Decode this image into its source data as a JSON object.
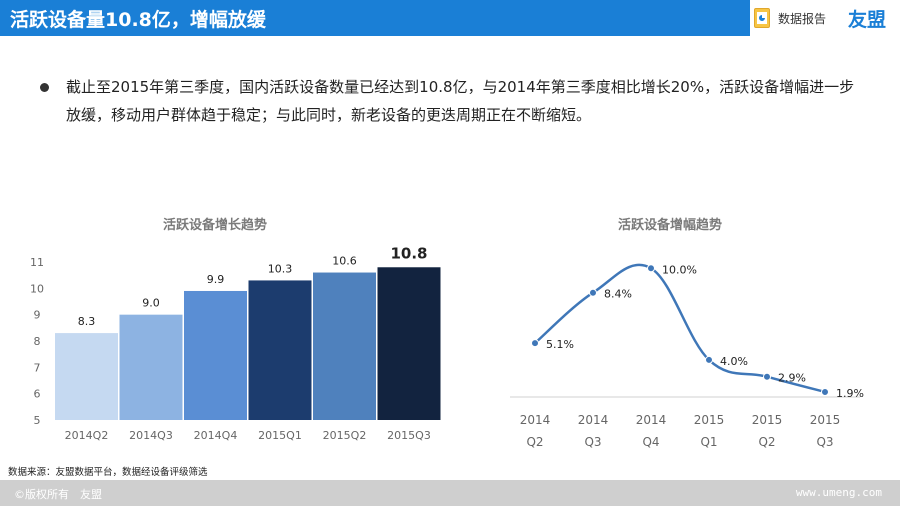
{
  "header": {
    "title": "活跃设备量10.8亿，增幅放缓",
    "report_label": "数据报告",
    "brand": "友盟",
    "accent_color": "#1a7fd6",
    "icon": "report-icon"
  },
  "summary": "截止至2015年第三季度，国内活跃设备数量已经达到10.8亿，与2014年第三季度相比增长20%，活跃设备增幅进一步放缓，移动用户群体趋于稳定；与此同时，新老设备的更迭周期正在不断缩短。",
  "chart_data": [
    {
      "type": "bar",
      "title": "活跃设备增长趋势",
      "categories": [
        "2014Q2",
        "2014Q3",
        "2014Q4",
        "2015Q1",
        "2015Q2",
        "2015Q3"
      ],
      "values": [
        8.3,
        9.0,
        9.9,
        10.3,
        10.6,
        10.8
      ],
      "value_labels": [
        "8.3",
        "9.0",
        "9.9",
        "10.3",
        "10.6",
        "10.8"
      ],
      "bar_colors": [
        "#c5d9f1",
        "#8db3e2",
        "#5a8ed4",
        "#1c3c6e",
        "#4f81bd",
        "#12233f"
      ],
      "ylim": [
        5,
        11
      ],
      "yticks": [
        5,
        6,
        7,
        8,
        9,
        10,
        11
      ],
      "grid": false
    },
    {
      "type": "line",
      "title": "活跃设备增幅趋势",
      "categories": [
        [
          "2014",
          "Q2"
        ],
        [
          "2014",
          "Q3"
        ],
        [
          "2014",
          "Q4"
        ],
        [
          "2015",
          "Q1"
        ],
        [
          "2015",
          "Q2"
        ],
        [
          "2015",
          "Q3"
        ]
      ],
      "values": [
        5.1,
        8.4,
        10.0,
        4.0,
        2.9,
        1.9
      ],
      "value_labels": [
        "5.1%",
        "8.4%",
        "10.0%",
        "4.0%",
        "2.9%",
        "1.9%"
      ],
      "line_color": "#3f77b8",
      "ylim": [
        0,
        11
      ],
      "grid": false
    }
  ],
  "source_note": "数据来源：友盟数据平台，数据经设备评级筛选",
  "footer": {
    "copyright": "©版权所有　友盟",
    "website": "www.umeng.com"
  }
}
